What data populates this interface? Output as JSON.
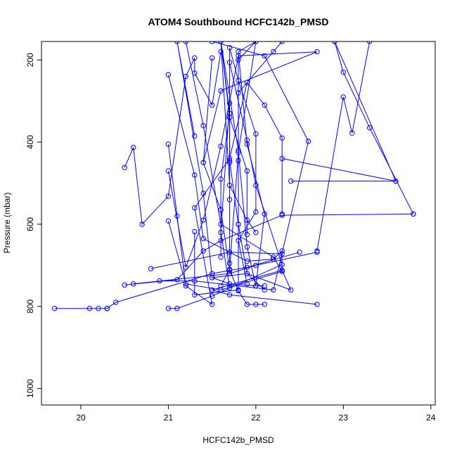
{
  "chart_data": {
    "type": "line",
    "title": "ATOM4 Southbound HCFC142b_PMSD",
    "xlabel": "HCFC142b_PMSD",
    "ylabel": "Pressure (mbar)",
    "xlim": [
      19.55,
      24.05
    ],
    "ylim": [
      1040,
      155
    ],
    "y_reversed": true,
    "x_ticks": [
      20,
      21,
      22,
      23,
      24
    ],
    "y_ticks": [
      200,
      400,
      600,
      800,
      1000
    ],
    "marker": "open-circle",
    "series_color": "#0000ff",
    "profiles": [
      {
        "points": [
          [
            19.7,
            805
          ],
          [
            20.1,
            805
          ],
          [
            20.2,
            805
          ],
          [
            20.3,
            805
          ]
        ]
      },
      {
        "points": [
          [
            20.3,
            805
          ],
          [
            20.4,
            790
          ],
          [
            21.5,
            720
          ],
          [
            21.9,
            705
          ],
          [
            22.5,
            668
          ]
        ]
      },
      {
        "points": [
          [
            20.5,
            748
          ],
          [
            21.1,
            735
          ],
          [
            21.4,
            665
          ],
          [
            21.6,
            640
          ],
          [
            22.3,
            578
          ],
          [
            23.8,
            575
          ]
        ]
      },
      {
        "points": [
          [
            20.6,
            745
          ],
          [
            21.7,
            720
          ],
          [
            22.0,
            700
          ],
          [
            22.7,
            668
          ]
        ]
      },
      {
        "points": [
          [
            20.5,
            462
          ],
          [
            20.6,
            413
          ],
          [
            20.7,
            600
          ],
          [
            21.0,
            532
          ],
          [
            21.2,
            240
          ],
          [
            21.3,
            195
          ],
          [
            21.3,
            232
          ],
          [
            21.5,
            310
          ],
          [
            21.6,
            180
          ]
        ]
      },
      {
        "points": [
          [
            20.9,
            738
          ],
          [
            21.3,
            738
          ],
          [
            22.2,
            760
          ],
          [
            22.6,
            398
          ],
          [
            22.1,
            190
          ],
          [
            21.5,
            155
          ]
        ]
      },
      {
        "points": [
          [
            20.8,
            708
          ],
          [
            21.7,
            668
          ],
          [
            22.3,
            672
          ],
          [
            22.3,
            712
          ],
          [
            21.5,
            760
          ],
          [
            21.7,
            772
          ],
          [
            22.7,
            795
          ]
        ]
      },
      {
        "points": [
          [
            21.0,
            805
          ],
          [
            21.1,
            805
          ],
          [
            21.5,
            775
          ],
          [
            22.3,
            698
          ],
          [
            22.0,
            505
          ],
          [
            21.9,
            395
          ],
          [
            21.7,
            206
          ]
        ]
      },
      {
        "points": [
          [
            21.0,
            592
          ],
          [
            21.2,
            745
          ],
          [
            21.6,
            760
          ],
          [
            22.3,
            715
          ],
          [
            22.2,
            680
          ],
          [
            21.6,
            600
          ],
          [
            21.4,
            360
          ],
          [
            21.2,
            155
          ]
        ]
      },
      {
        "points": [
          [
            21.0,
            470
          ],
          [
            21.2,
            705
          ],
          [
            21.4,
            590
          ],
          [
            21.6,
            410
          ],
          [
            21.8,
            190
          ],
          [
            22.7,
            180
          ],
          [
            21.6,
            275
          ],
          [
            21.4,
            450
          ]
        ]
      },
      {
        "points": [
          [
            21.0,
            405
          ],
          [
            21.1,
            580
          ],
          [
            21.2,
            750
          ],
          [
            21.5,
            795
          ],
          [
            21.3,
            560
          ],
          [
            21.7,
            440
          ],
          [
            21.9,
            255
          ],
          [
            22.1,
            310
          ],
          [
            22.3,
            390
          ],
          [
            22.3,
            575
          ]
        ]
      },
      {
        "points": [
          [
            21.0,
            236
          ],
          [
            21.3,
            480
          ],
          [
            21.4,
            635
          ],
          [
            21.9,
            690
          ],
          [
            22.2,
            685
          ],
          [
            22.3,
            665
          ]
        ]
      },
      {
        "points": [
          [
            21.3,
            385
          ],
          [
            21.1,
            155
          ],
          [
            21.4,
            525
          ],
          [
            21.5,
            730
          ],
          [
            21.7,
            745
          ],
          [
            22.0,
            750
          ]
        ]
      },
      {
        "points": [
          [
            21.3,
            618
          ],
          [
            21.3,
            772
          ],
          [
            21.8,
            760
          ],
          [
            21.8,
            280
          ],
          [
            22.3,
            155
          ],
          [
            22.2,
            180
          ]
        ]
      },
      {
        "points": [
          [
            21.5,
            195
          ],
          [
            21.4,
            450
          ],
          [
            21.6,
            565
          ],
          [
            21.7,
            712
          ],
          [
            21.8,
            762
          ],
          [
            21.9,
            795
          ],
          [
            22.0,
            795
          ],
          [
            22.1,
            795
          ]
        ]
      },
      {
        "points": [
          [
            21.6,
            680
          ],
          [
            21.6,
            490
          ],
          [
            21.7,
            330
          ],
          [
            21.7,
            170
          ],
          [
            21.8,
            250
          ],
          [
            22.0,
            380
          ],
          [
            22.0,
            570
          ],
          [
            21.8,
            640
          ],
          [
            21.9,
            745
          ]
        ]
      },
      {
        "points": [
          [
            21.7,
            695
          ],
          [
            21.7,
            540
          ],
          [
            21.7,
            450
          ],
          [
            21.7,
            330
          ],
          [
            21.6,
            155
          ],
          [
            21.8,
            420
          ],
          [
            21.9,
            655
          ],
          [
            22.0,
            750
          ],
          [
            22.1,
            750
          ]
        ]
      },
      {
        "points": [
          [
            21.7,
            755
          ],
          [
            21.6,
            620
          ],
          [
            21.7,
            305
          ],
          [
            21.7,
            445
          ],
          [
            21.8,
            600
          ],
          [
            21.9,
            720
          ],
          [
            22.1,
            760
          ]
        ]
      },
      {
        "points": [
          [
            21.8,
            600
          ],
          [
            21.8,
            445
          ],
          [
            21.8,
            200
          ],
          [
            22.0,
            155
          ],
          [
            21.8,
            425
          ],
          [
            21.7,
            710
          ],
          [
            21.6,
            750
          ]
        ]
      },
      {
        "points": [
          [
            21.9,
            625
          ],
          [
            21.9,
            470
          ],
          [
            21.7,
            340
          ],
          [
            21.6,
            155
          ],
          [
            21.7,
            505
          ],
          [
            21.9,
            590
          ],
          [
            22.0,
            620
          ]
        ]
      },
      {
        "points": [
          [
            22.0,
            750
          ],
          [
            22.1,
            575
          ],
          [
            21.9,
            405
          ],
          [
            21.8,
            180
          ],
          [
            22.0,
            155
          ]
        ]
      },
      {
        "points": [
          [
            22.3,
            440
          ],
          [
            23.6,
            495
          ],
          [
            22.9,
            155
          ]
        ]
      },
      {
        "points": [
          [
            22.4,
            495
          ],
          [
            23.6,
            495
          ]
        ]
      },
      {
        "points": [
          [
            22.7,
            665
          ],
          [
            23.0,
            290
          ],
          [
            23.1,
            378
          ],
          [
            23.3,
            155
          ]
        ]
      },
      {
        "points": [
          [
            23.8,
            575
          ],
          [
            23.3,
            365
          ],
          [
            23.0,
            230
          ],
          [
            22.9,
            155
          ]
        ]
      },
      {
        "points": [
          [
            22.3,
            712
          ],
          [
            22.4,
            760
          ],
          [
            21.9,
            720
          ],
          [
            21.5,
            730
          ]
        ]
      }
    ]
  }
}
